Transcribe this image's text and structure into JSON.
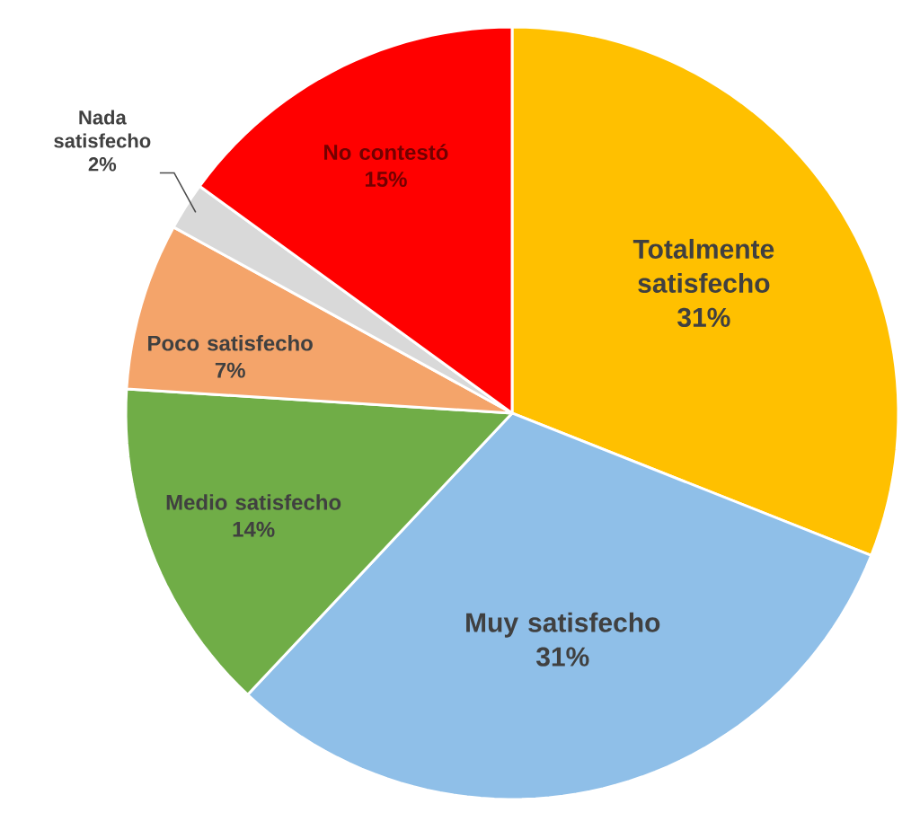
{
  "chart_data": {
    "type": "pie",
    "categories": [
      "Totalmente satisfecho",
      "Muy satisfecho",
      "Medio satisfecho",
      "Poco satisfecho",
      "Nada satisfecho",
      "No contestó"
    ],
    "values": [
      31,
      31,
      14,
      7,
      2,
      15
    ],
    "value_labels": [
      "31%",
      "31%",
      "14%",
      "7%",
      "2%",
      "15%"
    ],
    "colors": [
      "#ffc000",
      "#8fbfe8",
      "#70ad47",
      "#f4a46a",
      "#d9d9d9",
      "#ff0000"
    ]
  }
}
